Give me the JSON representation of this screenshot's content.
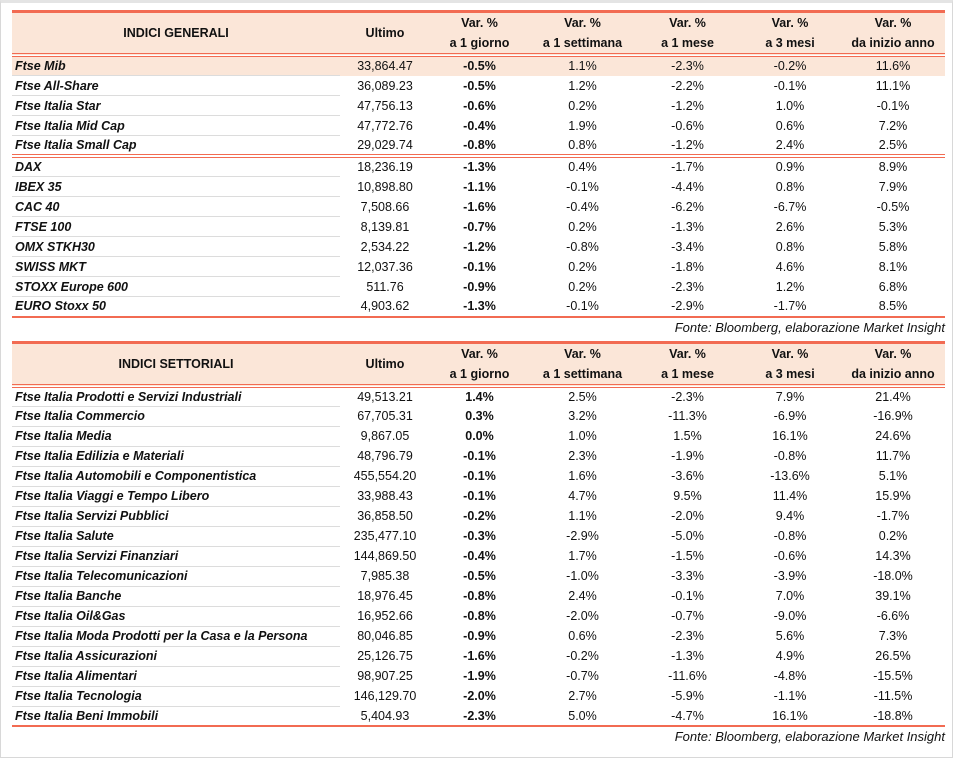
{
  "columns": [
    "Ultimo",
    "Var. %|a 1 giorno",
    "Var. %|a 1 settimana",
    "Var. %|a 1 mese",
    "Var. %|a 3 mesi",
    "Var. %|da inizio anno"
  ],
  "colors": {
    "accent": "#f26b52",
    "header_bg": "#fbe6d8"
  },
  "general": {
    "title": "INDICI GENERALI",
    "rows": [
      [
        "Ftse Mib",
        "33,864.47",
        "-0.5%",
        "1.1%",
        "-2.3%",
        "-0.2%",
        "11.6%"
      ],
      [
        "Ftse All-Share",
        "36,089.23",
        "-0.5%",
        "1.2%",
        "-2.2%",
        "-0.1%",
        "11.1%"
      ],
      [
        "Ftse Italia Star",
        "47,756.13",
        "-0.6%",
        "0.2%",
        "-1.2%",
        "1.0%",
        "-0.1%"
      ],
      [
        "Ftse Italia Mid Cap",
        "47,772.76",
        "-0.4%",
        "1.9%",
        "-0.6%",
        "0.6%",
        "7.2%"
      ],
      [
        "Ftse Italia Small Cap",
        "29,029.74",
        "-0.8%",
        "0.8%",
        "-1.2%",
        "2.4%",
        "2.5%"
      ],
      [
        "DAX",
        "18,236.19",
        "-1.3%",
        "0.4%",
        "-1.7%",
        "0.9%",
        "8.9%"
      ],
      [
        "IBEX 35",
        "10,898.80",
        "-1.1%",
        "-0.1%",
        "-4.4%",
        "0.8%",
        "7.9%"
      ],
      [
        "CAC 40",
        "7,508.66",
        "-1.6%",
        "-0.4%",
        "-6.2%",
        "-6.7%",
        "-0.5%"
      ],
      [
        "FTSE 100",
        "8,139.81",
        "-0.7%",
        "0.2%",
        "-1.3%",
        "2.6%",
        "5.3%"
      ],
      [
        "OMX STKH30",
        "2,534.22",
        "-1.2%",
        "-0.8%",
        "-3.4%",
        "0.8%",
        "5.8%"
      ],
      [
        "SWISS MKT",
        "12,037.36",
        "-0.1%",
        "0.2%",
        "-1.8%",
        "4.6%",
        "8.1%"
      ],
      [
        "STOXX Europe 600",
        "511.76",
        "-0.9%",
        "0.2%",
        "-2.3%",
        "1.2%",
        "6.8%"
      ],
      [
        "EURO Stoxx 50",
        "4,903.62",
        "-1.3%",
        "-0.1%",
        "-2.9%",
        "-1.7%",
        "8.5%"
      ]
    ],
    "source": "Fonte: Bloomberg, elaborazione Market Insight"
  },
  "sector": {
    "title": "INDICI SETTORIALI",
    "rows": [
      [
        "Ftse Italia Prodotti e Servizi Industriali",
        "49,513.21",
        "1.4%",
        "2.5%",
        "-2.3%",
        "7.9%",
        "21.4%"
      ],
      [
        "Ftse Italia Commercio",
        "67,705.31",
        "0.3%",
        "3.2%",
        "-11.3%",
        "-6.9%",
        "-16.9%"
      ],
      [
        "Ftse Italia Media",
        "9,867.05",
        "0.0%",
        "1.0%",
        "1.5%",
        "16.1%",
        "24.6%"
      ],
      [
        "Ftse Italia Edilizia e Materiali",
        "48,796.79",
        "-0.1%",
        "2.3%",
        "-1.9%",
        "-0.8%",
        "11.7%"
      ],
      [
        "Ftse Italia Automobili e Componentistica",
        "455,554.20",
        "-0.1%",
        "1.6%",
        "-3.6%",
        "-13.6%",
        "5.1%"
      ],
      [
        "Ftse Italia Viaggi e Tempo Libero",
        "33,988.43",
        "-0.1%",
        "4.7%",
        "9.5%",
        "11.4%",
        "15.9%"
      ],
      [
        "Ftse Italia Servizi Pubblici",
        "36,858.50",
        "-0.2%",
        "1.1%",
        "-2.0%",
        "9.4%",
        "-1.7%"
      ],
      [
        "Ftse Italia Salute",
        "235,477.10",
        "-0.3%",
        "-2.9%",
        "-5.0%",
        "-0.8%",
        "0.2%"
      ],
      [
        "Ftse Italia Servizi Finanziari",
        "144,869.50",
        "-0.4%",
        "1.7%",
        "-1.5%",
        "-0.6%",
        "14.3%"
      ],
      [
        "Ftse Italia Telecomunicazioni",
        "7,985.38",
        "-0.5%",
        "-1.0%",
        "-3.3%",
        "-3.9%",
        "-18.0%"
      ],
      [
        "Ftse Italia Banche",
        "18,976.45",
        "-0.8%",
        "2.4%",
        "-0.1%",
        "7.0%",
        "39.1%"
      ],
      [
        "Ftse Italia Oil&Gas",
        "16,952.66",
        "-0.8%",
        "-2.0%",
        "-0.7%",
        "-9.0%",
        "-6.6%"
      ],
      [
        "Ftse Italia Moda Prodotti per la Casa e la Persona",
        "80,046.85",
        "-0.9%",
        "0.6%",
        "-2.3%",
        "5.6%",
        "7.3%"
      ],
      [
        "Ftse Italia Assicurazioni",
        "25,126.75",
        "-1.6%",
        "-0.2%",
        "-1.3%",
        "4.9%",
        "26.5%"
      ],
      [
        "Ftse Italia Alimentari",
        "98,907.25",
        "-1.9%",
        "-0.7%",
        "-11.6%",
        "-4.8%",
        "-15.5%"
      ],
      [
        "Ftse Italia Tecnologia",
        "146,129.70",
        "-2.0%",
        "2.7%",
        "-5.9%",
        "-1.1%",
        "-11.5%"
      ],
      [
        "Ftse Italia Beni Immobili",
        "5,404.93",
        "-2.3%",
        "5.0%",
        "-4.7%",
        "16.1%",
        "-18.8%"
      ]
    ],
    "source": "Fonte: Bloomberg, elaborazione Market Insight"
  }
}
